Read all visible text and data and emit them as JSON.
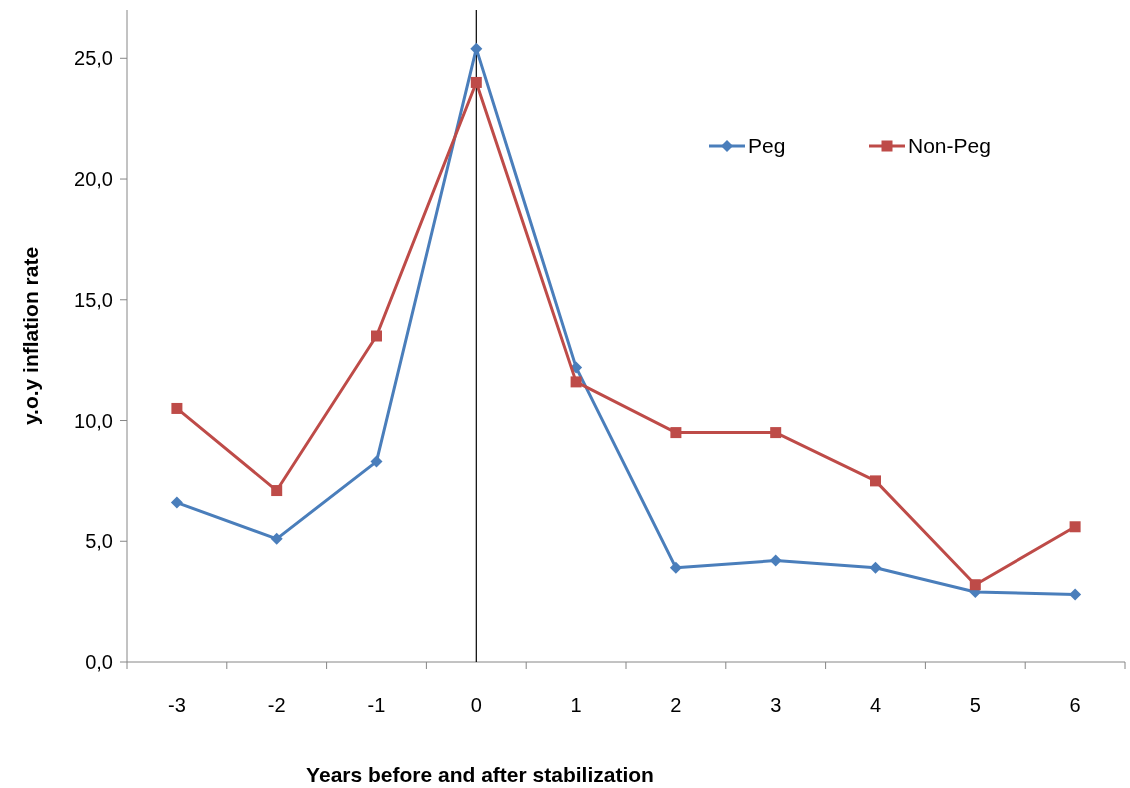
{
  "chart_data": {
    "type": "line",
    "xlabel": "Years before and after stabilization",
    "ylabel": "y.o.y inflation rate",
    "categories": [
      "-3",
      "-2",
      "-1",
      "0",
      "1",
      "2",
      "3",
      "4",
      "5",
      "6"
    ],
    "series": [
      {
        "name": "Peg",
        "color": "#4a7ebb",
        "marker": "diamond",
        "values": [
          6.6,
          5.1,
          8.3,
          25.4,
          12.2,
          3.9,
          4.2,
          3.9,
          2.9,
          2.8
        ]
      },
      {
        "name": "Non-Peg",
        "color": "#be4b48",
        "marker": "square",
        "values": [
          10.5,
          7.1,
          13.5,
          24.0,
          11.6,
          9.5,
          9.5,
          7.5,
          3.2,
          5.6
        ]
      }
    ],
    "ylim": [
      0,
      27
    ],
    "yticks": [
      {
        "value": 0,
        "label": "0,0"
      },
      {
        "value": 5,
        "label": "5,0"
      },
      {
        "value": 10,
        "label": "10,0"
      },
      {
        "value": 15,
        "label": "15,0"
      },
      {
        "value": 20,
        "label": "20,0"
      },
      {
        "value": 25,
        "label": "25,0"
      }
    ],
    "ref_lines": [
      {
        "axis": "x",
        "value": "0",
        "color": "#000000"
      }
    ],
    "legend": "top right",
    "grid": false,
    "line_style": "solid"
  }
}
